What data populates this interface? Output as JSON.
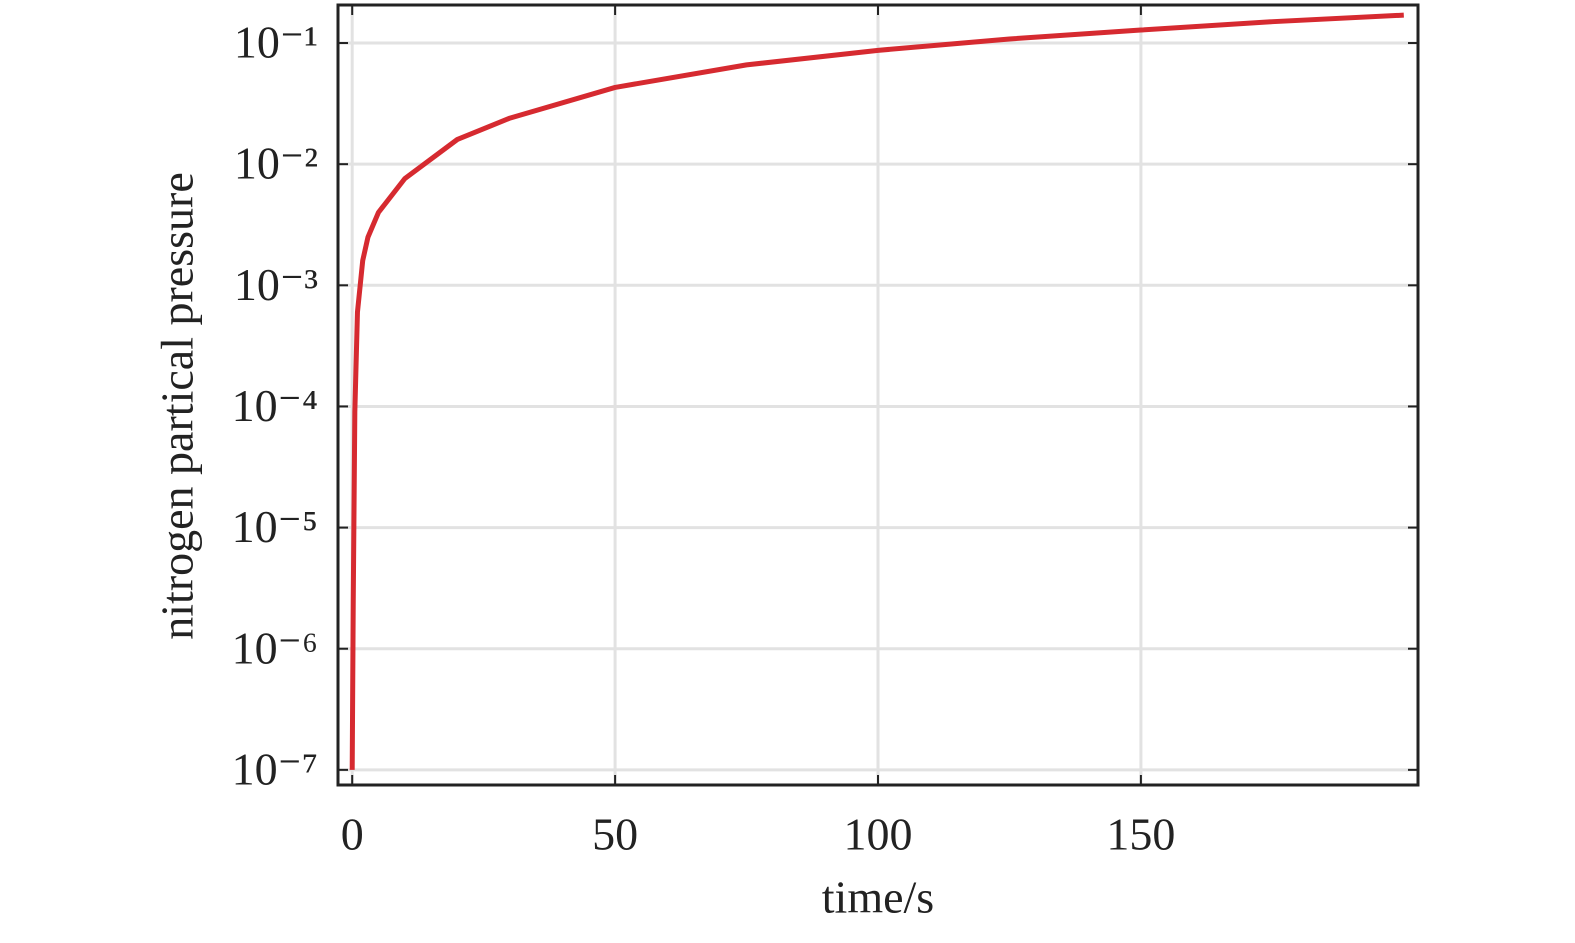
{
  "chart_data": {
    "type": "line",
    "xlabel": "time/s",
    "ylabel": "nitrogen partical pressure",
    "x": [
      0,
      0.2,
      0.5,
      1,
      2,
      3,
      5,
      10,
      20,
      30,
      50,
      75,
      100,
      125,
      150,
      175,
      200
    ],
    "series": [
      {
        "color": "#d62a30",
        "values": [
          1e-07,
          2.5e-06,
          9e-05,
          0.0006,
          0.0016,
          0.0025,
          0.004,
          0.0076,
          0.016,
          0.024,
          0.043,
          0.066,
          0.087,
          0.108,
          0.128,
          0.15,
          0.17
        ]
      }
    ],
    "xlim": [
      -2.7,
      202.7
    ],
    "xticks": [
      0,
      50,
      100,
      150
    ],
    "ylim": [
      7.5e-08,
      0.206
    ],
    "yscale": "log",
    "yticks": [
      {
        "value": 1e-07,
        "label": "10⁻⁷"
      },
      {
        "value": 1e-06,
        "label": "10⁻⁶"
      },
      {
        "value": 1e-05,
        "label": "10⁻⁵"
      },
      {
        "value": 0.0001,
        "label": "10⁻⁴"
      },
      {
        "value": 0.001,
        "label": "10⁻³"
      },
      {
        "value": 0.01,
        "label": "10⁻²"
      },
      {
        "value": 0.1,
        "label": "10⁻¹"
      }
    ],
    "grid": true
  }
}
